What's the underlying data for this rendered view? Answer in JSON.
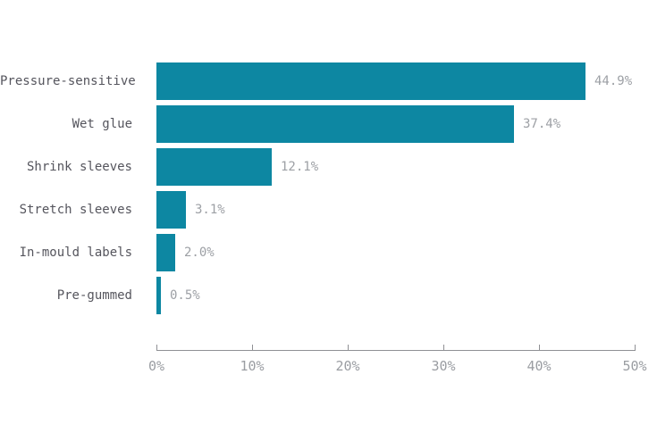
{
  "chart_data": {
    "type": "bar",
    "orientation": "horizontal",
    "title": "",
    "xlabel": "",
    "ylabel": "",
    "categories": [
      "Pressure-sensitive",
      "Wet glue",
      "Shrink sleeves",
      "Stretch sleeves",
      "In-mould labels",
      "Pre-gummed"
    ],
    "values": [
      44.9,
      37.4,
      12.1,
      3.1,
      2.0,
      0.5
    ],
    "value_labels": [
      "44.9%",
      "37.4%",
      "12.1%",
      "3.1%",
      "2.0%",
      "0.5%"
    ],
    "xlim": [
      0,
      50
    ],
    "x_ticks": [
      0,
      10,
      20,
      30,
      40,
      50
    ],
    "x_tick_labels": [
      "0%",
      "10%",
      "20%",
      "30%",
      "40%",
      "50%"
    ],
    "grid": false,
    "legend": false,
    "colors": {
      "bar": "#0d87a2",
      "category_label": "#55555d",
      "value_label": "#9da0a5",
      "axis": "#8f9094",
      "tick_label": "#9a9da2",
      "background": "#ffffff"
    }
  }
}
